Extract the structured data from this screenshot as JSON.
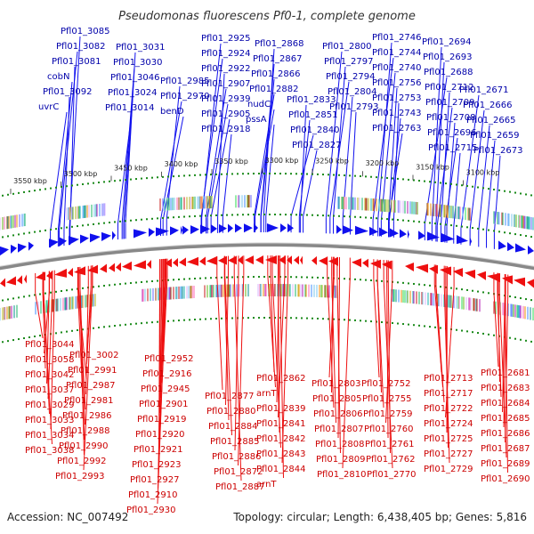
{
  "title": "Pseudomonas fluorescens Pf0-1, complete genome",
  "accession_text": "Accession: NC_007492",
  "topology_text": "Topology: circular; Length: 6,438,405 bp; Genes: 5,816",
  "colors": {
    "forward": "#1010ee",
    "reverse": "#ee1010",
    "backbone": "#888888",
    "tick_dot": "#1a8a1a"
  },
  "scale_ticks": [
    "3550 kbp",
    "3500 kbp",
    "3450 kbp",
    "3400 kbp",
    "3350 kbp",
    "3300 kbp",
    "3250 kbp",
    "3200 kbp",
    "3150 kbp",
    "3100 kbp"
  ],
  "top_labels": [
    "Pfl01_3085",
    "Pfl01_3082",
    "Pfl01_3081",
    "cobN",
    "Pfl01_3092",
    "uvrC",
    "Pfl01_3031",
    "Pfl01_3030",
    "Pfl01_3046",
    "Pfl01_3024",
    "Pfl01_3014",
    "Pfl01_2985",
    "Pfl01_2970",
    "benD",
    "Pfl01_2925",
    "Pfl01_2924",
    "Pfl01_2922",
    "Pfl01_2907",
    "Pfl01_2939",
    "Pfl01_2905",
    "Pfl01_2918",
    "Pfl01_2868",
    "Pfl01_2867",
    "Pfl01_2866",
    "Pfl01_2882",
    "nudC",
    "pssA",
    "Pfl01_2833",
    "Pfl01_2851",
    "Pfl01_2840",
    "Pfl01_2827",
    "Pfl01_2800",
    "Pfl01_2797",
    "Pfl01_2794",
    "Pfl01_2804",
    "Pfl01_2793",
    "Pfl01_2746",
    "Pfl01_2744",
    "Pfl01_2740",
    "Pfl01_2756",
    "Pfl01_2753",
    "Pfl01_2743",
    "Pfl01_2763",
    "Pfl01_2694",
    "Pfl01_2693",
    "Pfl01_2688",
    "Pfl01_2712",
    "Pfl01_2709",
    "Pfl01_2708",
    "Pfl01_2696",
    "Pfl01_2715",
    "Pfl01_2671",
    "Pfl01_2666",
    "Pfl01_2665",
    "Pfl01_2659",
    "Pfl01_2673"
  ],
  "bottom_labels": [
    "Pfl01_3044",
    "Pfl01_3058",
    "Pfl01_3042",
    "Pfl01_3037",
    "Pfl01_3029",
    "Pfl01_3033",
    "Pfl01_3034",
    "Pfl01_3038",
    "Pfl01_3002",
    "Pfl01_2991",
    "Pfl01_2987",
    "Pfl01_2981",
    "Pfl01_2986",
    "Pfl01_2988",
    "Pfl01_2990",
    "Pfl01_2992",
    "Pfl01_2993",
    "Pfl01_2952",
    "Pfl01_2916",
    "Pfl01_2945",
    "Pfl01_2901",
    "Pfl01_2919",
    "Pfl01_2920",
    "Pfl01_2921",
    "Pfl01_2923",
    "Pfl01_2927",
    "Pfl01_2910",
    "Pfl01_2930",
    "Pfl01_2877",
    "Pfl01_2880",
    "Pfl01_2884",
    "Pfl01_2885",
    "Pfl01_2886",
    "Pfl01_2872",
    "Pfl01_2887",
    "Pfl01_2862",
    "arnT",
    "Pfl01_2839",
    "Pfl01_2841",
    "Pfl01_2842",
    "Pfl01_2843",
    "Pfl01_2844",
    "arnT",
    "Pfl01_2803",
    "Pfl01_2805",
    "Pfl01_2806",
    "Pfl01_2807",
    "Pfl01_2808",
    "Pfl01_2809",
    "Pfl01_2810",
    "Pfl01_2752",
    "Pfl01_2755",
    "Pfl01_2759",
    "Pfl01_2760",
    "Pfl01_2761",
    "Pfl01_2762",
    "Pfl01_2770",
    "Pfl01_2713",
    "Pfl01_2717",
    "Pfl01_2722",
    "Pfl01_2724",
    "Pfl01_2725",
    "Pfl01_2727",
    "Pfl01_2729",
    "Pfl01_2681",
    "Pfl01_2683",
    "Pfl01_2684",
    "Pfl01_2685",
    "Pfl01_2686",
    "Pfl01_2687",
    "Pfl01_2689",
    "Pfl01_2690"
  ]
}
